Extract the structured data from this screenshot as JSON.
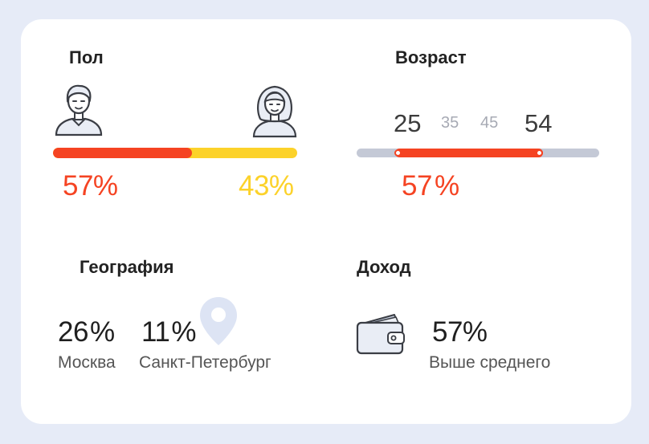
{
  "gender": {
    "title": "Пол",
    "male_pct": "57%",
    "female_pct": "43%",
    "male_share": 0.57,
    "colors": {
      "male": "#f54322",
      "female": "#fcd22a"
    }
  },
  "age": {
    "title": "Возраст",
    "range_from": "25",
    "tick_35": "35",
    "tick_45": "45",
    "range_to": "54",
    "percent": "57",
    "percent_sign": "%",
    "colors": {
      "track": "#c4c9d6",
      "range": "#f54322"
    }
  },
  "geo": {
    "title": "География",
    "moscow": {
      "pct": "26",
      "pct_sign": "%",
      "name": "Москва"
    },
    "spb": {
      "pct": "11",
      "pct_sign": "%",
      "name": "Санкт-Петербург"
    },
    "icon": "location-pin-icon"
  },
  "income": {
    "title": "Доход",
    "pct": "57%",
    "label": "Выше среднего",
    "icon": "wallet-icon"
  }
}
